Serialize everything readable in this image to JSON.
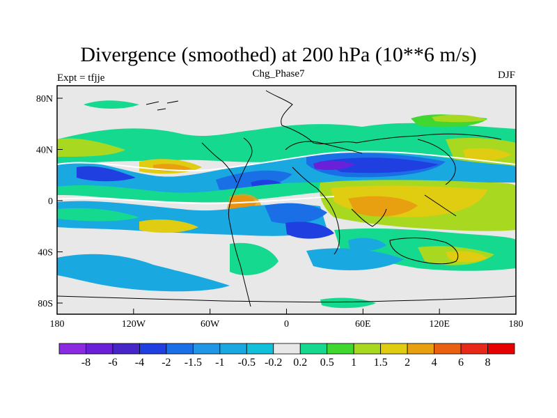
{
  "title": "Divergence (smoothed) at 200 hPa (10**6 m/s)",
  "subtitle_left": "Expt = tfjje",
  "subtitle_center": "Chg_Phase7",
  "subtitle_right": "DJF",
  "map": {
    "lon_ticks": [
      "180",
      "120W",
      "60W",
      "0",
      "60E",
      "120E",
      "180"
    ],
    "lat_ticks": [
      "80N",
      "40N",
      "0",
      "40S",
      "80S"
    ]
  },
  "colorbar": {
    "labels": [
      "-8",
      "-6",
      "-4",
      "-2",
      "-1.5",
      "-1",
      "-0.5",
      "-0.2",
      "0.2",
      "0.5",
      "1",
      "1.5",
      "2",
      "4",
      "6",
      "8"
    ],
    "colors": [
      "#8a2be2",
      "#6a1fd8",
      "#4626c8",
      "#1f3fe0",
      "#1a6fe6",
      "#2196e6",
      "#19a9e0",
      "#13c0dc",
      "#e8e8e8",
      "#15d98f",
      "#40d830",
      "#a8d820",
      "#e0cc10",
      "#e8a010",
      "#e86010",
      "#e82818",
      "#e60000"
    ],
    "neutral_color": "#e8e8e8"
  }
}
